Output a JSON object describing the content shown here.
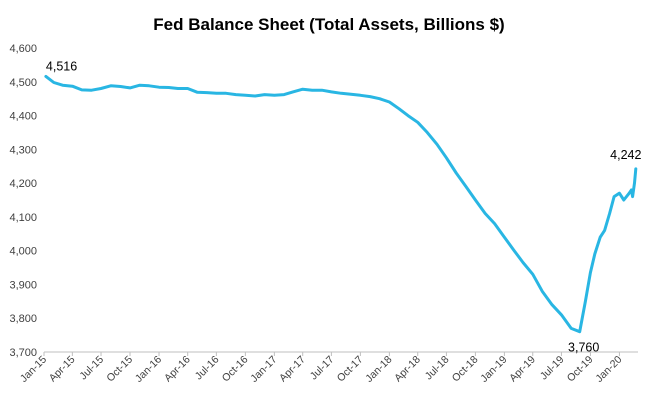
{
  "chart_data": {
    "type": "line",
    "title": "Fed Balance Sheet (Total Assets, Billions $)",
    "xlabel": "",
    "ylabel": "",
    "ylim": [
      3700,
      4600
    ],
    "yticks": [
      "3,700",
      "3,800",
      "3,900",
      "4,000",
      "4,100",
      "4,200",
      "4,300",
      "4,400",
      "4,500",
      "4,600"
    ],
    "xticks": [
      "Jan-15",
      "Apr-15",
      "Jul-15",
      "Oct-15",
      "Jan-16",
      "Apr-16",
      "Jul-16",
      "Oct-16",
      "Jan-17",
      "Apr-17",
      "Jul-17",
      "Oct-17",
      "Jan-18",
      "Apr-18",
      "Jul-18",
      "Oct-18",
      "Jan-19",
      "Apr-19",
      "Jul-19",
      "Oct-19",
      "Jan-20"
    ],
    "x_range": [
      "2015-01-01",
      "2020-02-29"
    ],
    "grid": false,
    "line_color": "#29B6E3",
    "series": [
      {
        "x": [
          "2015-01-07",
          "2015-02-01",
          "2015-03-01",
          "2015-04-01",
          "2015-05-01",
          "2015-06-01",
          "2015-07-01",
          "2015-08-01",
          "2015-09-01",
          "2015-10-01",
          "2015-11-01",
          "2015-12-01",
          "2016-01-01",
          "2016-02-01",
          "2016-03-01",
          "2016-04-01",
          "2016-05-01",
          "2016-06-01",
          "2016-07-01",
          "2016-08-01",
          "2016-09-01",
          "2016-10-01",
          "2016-11-01",
          "2016-12-01",
          "2017-01-01",
          "2017-02-01",
          "2017-03-01",
          "2017-04-01",
          "2017-05-01",
          "2017-06-01",
          "2017-07-01",
          "2017-08-01",
          "2017-09-01",
          "2017-10-01",
          "2017-11-01",
          "2017-12-01",
          "2018-01-01",
          "2018-02-01",
          "2018-03-01",
          "2018-04-01",
          "2018-05-01",
          "2018-06-01",
          "2018-07-01",
          "2018-08-01",
          "2018-09-01",
          "2018-10-01",
          "2018-11-01",
          "2018-12-01",
          "2019-01-01",
          "2019-02-01",
          "2019-03-01",
          "2019-04-01",
          "2019-05-01",
          "2019-06-01",
          "2019-07-01",
          "2019-08-01",
          "2019-08-28",
          "2019-09-15",
          "2019-10-01",
          "2019-10-15",
          "2019-11-01",
          "2019-11-15",
          "2019-12-01",
          "2019-12-15",
          "2020-01-01",
          "2020-01-15",
          "2020-02-01",
          "2020-02-08",
          "2020-02-12",
          "2020-02-18",
          "2020-02-22"
        ],
        "values": [
          4516,
          4498,
          4490,
          4487,
          4476,
          4475,
          4480,
          4488,
          4486,
          4482,
          4490,
          4488,
          4484,
          4483,
          4480,
          4480,
          4469,
          4468,
          4466,
          4466,
          4462,
          4460,
          4458,
          4462,
          4460,
          4462,
          4470,
          4478,
          4475,
          4475,
          4470,
          4466,
          4463,
          4460,
          4456,
          4450,
          4440,
          4420,
          4400,
          4380,
          4350,
          4315,
          4275,
          4230,
          4190,
          4150,
          4110,
          4080,
          4040,
          4000,
          3965,
          3930,
          3880,
          3840,
          3810,
          3770,
          3760,
          3850,
          3935,
          3990,
          4040,
          4060,
          4110,
          4160,
          4170,
          4150,
          4170,
          4180,
          4160,
          4200,
          4242
        ]
      }
    ],
    "annotations": [
      {
        "text": "4,516",
        "x": "2015-01-07",
        "y": 4516
      },
      {
        "text": "3,760",
        "x": "2019-08-28",
        "y": 3760
      },
      {
        "text": "4,242",
        "x": "2020-02-22",
        "y": 4242
      }
    ]
  }
}
